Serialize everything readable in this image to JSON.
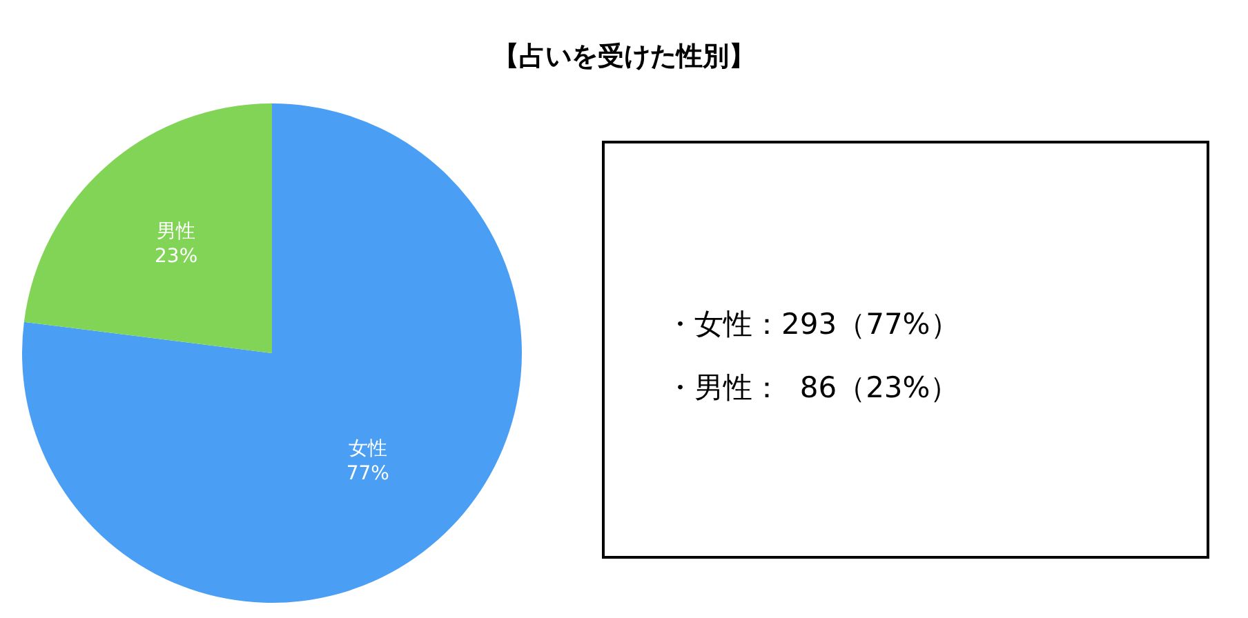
{
  "chart_data": {
    "type": "pie",
    "title": "【占いを受けた性別】",
    "categories": [
      "女性",
      "男性"
    ],
    "values": [
      77,
      23
    ],
    "value_labels": [
      "77%",
      "23%"
    ],
    "colors": [
      "#4a9ff5",
      "#82d456"
    ],
    "legend": false,
    "annotations": [
      "・女性：293（77%）",
      "・男性：  86（23%）"
    ]
  }
}
